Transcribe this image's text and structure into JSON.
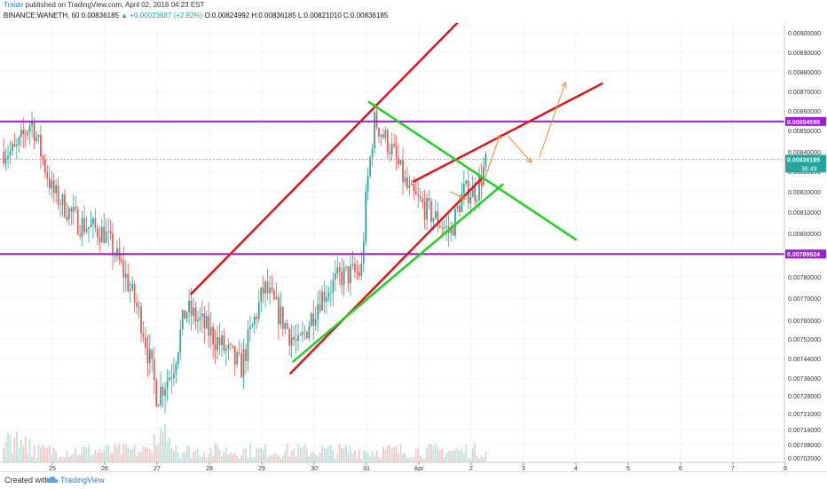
{
  "header": {
    "author": "Traide",
    "published_text": "published on TradingView.com, April 02, 2018 04:23 EST",
    "symbol_line": "BINANCE:WANETH, 60",
    "last_price": "0.00836185",
    "change": "▲ +0.00023687 (+2.92%)",
    "ohlc": "O:0.00824992 H:0.00836185 L:0.00821010 C:0.00836185"
  },
  "footer": {
    "created_with": "Created with",
    "brand": "TradingView"
  },
  "colors": {
    "up": "#26a69a",
    "down": "#ef5350",
    "channel": "#e0151b",
    "triangle": "#22d022",
    "level": "#9c1fd6",
    "arrow": "#f08a2c",
    "level_label_bg": "#9c1fd6",
    "price_label_bg": "#26a69a"
  },
  "chart_data": {
    "type": "candlestick",
    "x_tick_labels": [
      "25",
      "26",
      "27",
      "28",
      "29",
      "30",
      "31",
      "Apr",
      "2",
      "3",
      "4",
      "5",
      "6",
      "7",
      "8"
    ],
    "y_tick_labels": [
      "0.00900000",
      "0.00890000",
      "0.00880000",
      "0.00870000",
      "0.00860000",
      "0.00850000",
      "0.00840000",
      "0.00830000",
      "0.00820000",
      "0.00810000",
      "0.00800000",
      "0.00790000",
      "0.00780000",
      "0.00770000",
      "0.00760000",
      "0.00752000",
      "0.00744000",
      "0.00736000",
      "0.00728000",
      "0.00721000",
      "0.00714000",
      "0.00708000",
      "0.00702000"
    ],
    "horizontal_levels": [
      {
        "value": 0.00854598,
        "label": "0.00854598"
      },
      {
        "value": 0.00789924,
        "label": "0.00789924"
      }
    ],
    "current_price_label": "0.00836185",
    "countdown_label": "36:49",
    "anchor_closes": [
      {
        "day": 24.3,
        "close": 0.0084
      },
      {
        "day": 24.6,
        "close": 0.00855
      },
      {
        "day": 25.0,
        "close": 0.0082
      },
      {
        "day": 25.5,
        "close": 0.00805
      },
      {
        "day": 26.0,
        "close": 0.008
      },
      {
        "day": 26.4,
        "close": 0.0078
      },
      {
        "day": 26.7,
        "close": 0.0076
      },
      {
        "day": 27.0,
        "close": 0.00728
      },
      {
        "day": 27.3,
        "close": 0.0074
      },
      {
        "day": 27.55,
        "close": 0.00765
      },
      {
        "day": 27.8,
        "close": 0.0076
      },
      {
        "day": 28.2,
        "close": 0.0075
      },
      {
        "day": 28.6,
        "close": 0.0074
      },
      {
        "day": 29.05,
        "close": 0.00775
      },
      {
        "day": 29.4,
        "close": 0.0076
      },
      {
        "day": 29.7,
        "close": 0.00748
      },
      {
        "day": 30.1,
        "close": 0.0077
      },
      {
        "day": 30.5,
        "close": 0.0078
      },
      {
        "day": 30.9,
        "close": 0.00782
      },
      {
        "day": 31.0,
        "close": 0.0082
      },
      {
        "day": 31.15,
        "close": 0.00855
      },
      {
        "day": 31.5,
        "close": 0.0084
      },
      {
        "day": 31.8,
        "close": 0.0082
      },
      {
        "day": 32.2,
        "close": 0.0081
      },
      {
        "day": 32.6,
        "close": 0.008
      },
      {
        "day": 32.85,
        "close": 0.0082
      },
      {
        "day": 33.1,
        "close": 0.0082
      },
      {
        "day": 33.3,
        "close": 0.00836
      }
    ],
    "channel_lower": [
      {
        "day": 29.55,
        "value": 0.00738
      },
      {
        "day": 33.2,
        "value": 0.008265
      }
    ],
    "channel_upper": [
      {
        "day": 27.65,
        "value": 0.00772
      },
      {
        "day": 32.9,
        "value": 0.009096
      }
    ],
    "channel_upper_ext": [
      {
        "day": 31.9,
        "value": 0.00825
      },
      {
        "day": 35.5,
        "value": 0.00874
      }
    ],
    "triangle_lower": [
      {
        "day": 29.6,
        "value": 0.007428
      },
      {
        "day": 33.6,
        "value": 0.008235
      }
    ],
    "triangle_upper": [
      {
        "day": 31.05,
        "value": 0.008645
      },
      {
        "day": 35.0,
        "value": 0.00797
      }
    ],
    "projection_arrows": [
      [
        {
          "day": 32.6,
          "value": 0.0082
        },
        {
          "day": 32.9,
          "value": 0.008165
        }
      ],
      [
        {
          "day": 33.2,
          "value": 0.00822
        },
        {
          "day": 33.55,
          "value": 0.00848
        }
      ],
      [
        {
          "day": 33.7,
          "value": 0.008475
        },
        {
          "day": 34.15,
          "value": 0.008345
        }
      ],
      [
        {
          "day": 34.3,
          "value": 0.00837
        },
        {
          "day": 34.8,
          "value": 0.008745
        }
      ]
    ]
  }
}
